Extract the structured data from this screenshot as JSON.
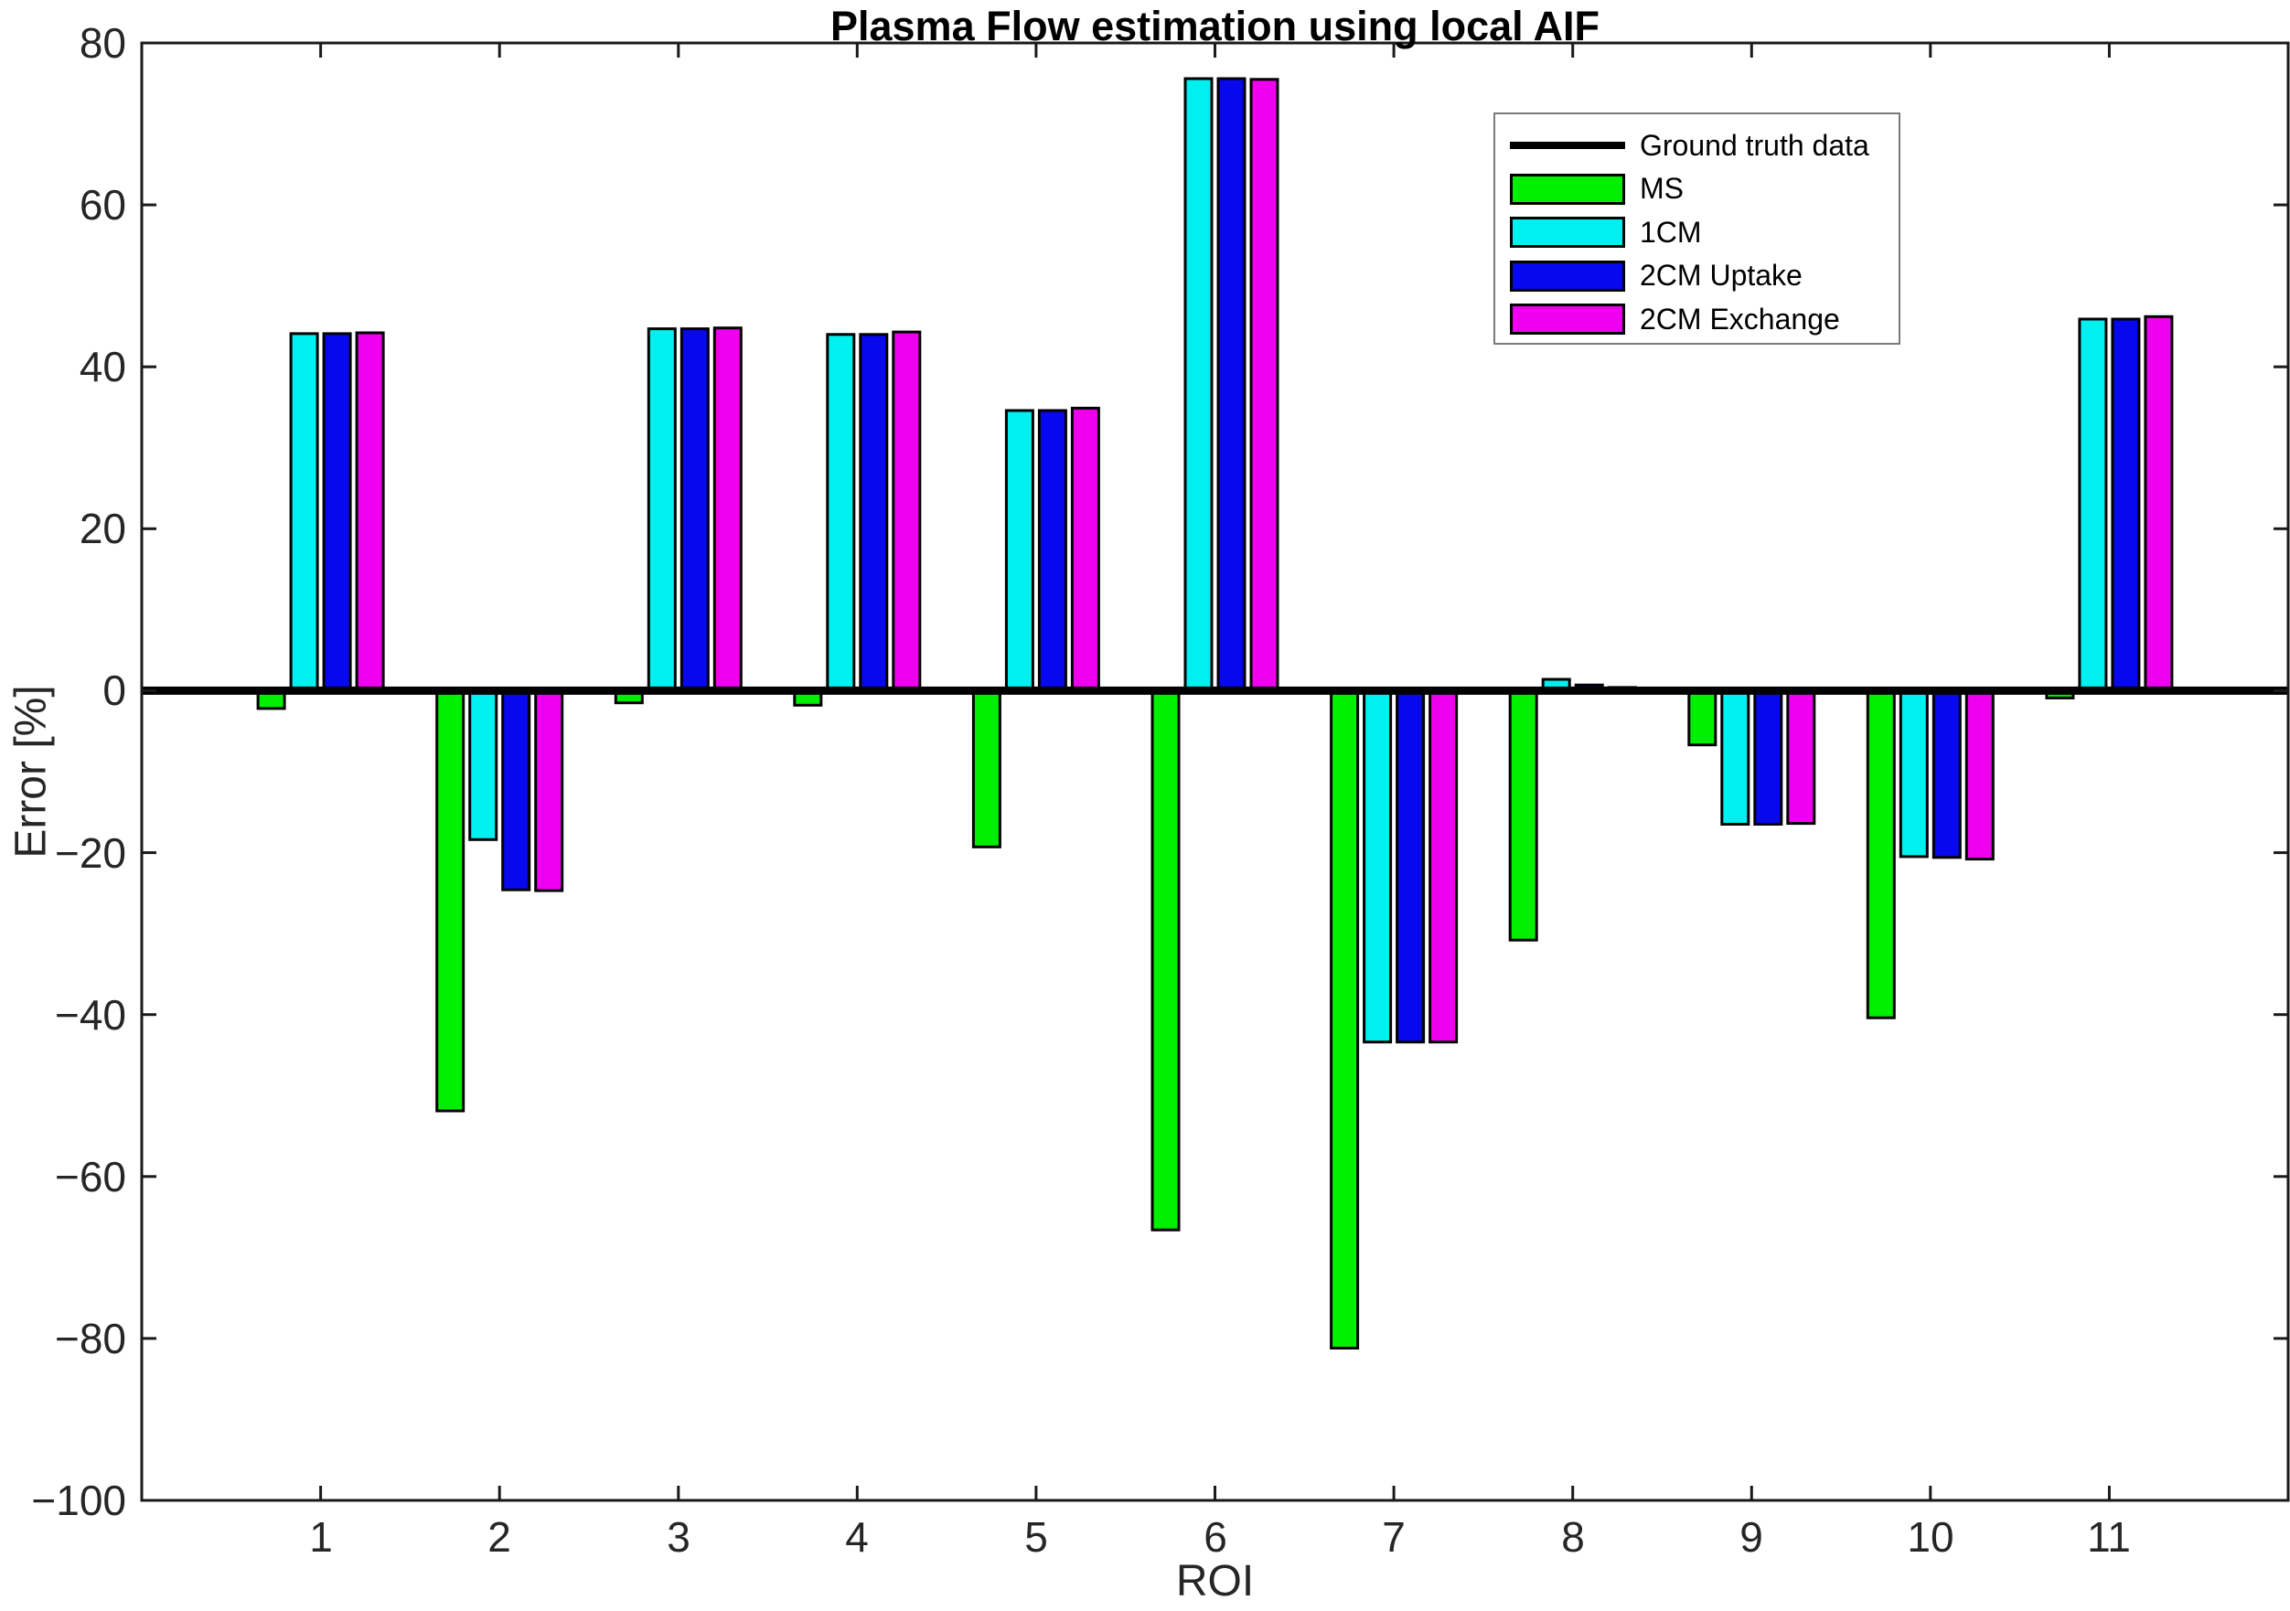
{
  "chart_data": {
    "type": "bar",
    "title": "Plasma Flow estimation using local AIF",
    "xlabel": "ROI",
    "ylabel": "Error [%]",
    "categories": [
      "1",
      "2",
      "3",
      "4",
      "5",
      "6",
      "7",
      "8",
      "9",
      "10",
      "11"
    ],
    "series": [
      {
        "name": "MS",
        "color": "#00ee00",
        "values": [
          -2.2,
          -51.9,
          -1.5,
          -1.8,
          -19.3,
          -66.6,
          -81.2,
          -30.8,
          -6.7,
          -40.4,
          -0.9
        ]
      },
      {
        "name": "1CM",
        "color": "#00efef",
        "values": [
          44.1,
          -18.4,
          44.7,
          44.0,
          34.6,
          75.6,
          -43.4,
          1.4,
          -16.5,
          -20.5,
          45.9
        ]
      },
      {
        "name": "2CM Uptake",
        "color": "#0808ee",
        "values": [
          44.1,
          -24.6,
          44.7,
          44.0,
          34.6,
          75.6,
          -43.4,
          0.7,
          -16.5,
          -20.6,
          45.9
        ]
      },
      {
        "name": "2CM Exchange",
        "color": "#ee00ee",
        "values": [
          44.2,
          -24.7,
          44.8,
          44.3,
          34.9,
          75.5,
          -43.4,
          0.4,
          -16.4,
          -20.8,
          46.2
        ]
      }
    ],
    "ground_truth": {
      "name": "Ground truth data",
      "value": 0,
      "color": "#000000"
    },
    "ylim": [
      -100,
      80
    ],
    "xlim": [
      0,
      12
    ],
    "yticks": [
      80,
      60,
      40,
      20,
      0,
      -20,
      -40,
      -60,
      -80,
      -100
    ],
    "legend_position": "northeast-inside",
    "grid": false,
    "box": true,
    "tick_direction": "in",
    "axis_color": "#1a1a1a",
    "tick_label_color": "#262626",
    "bar_edge_color": "#000000"
  }
}
